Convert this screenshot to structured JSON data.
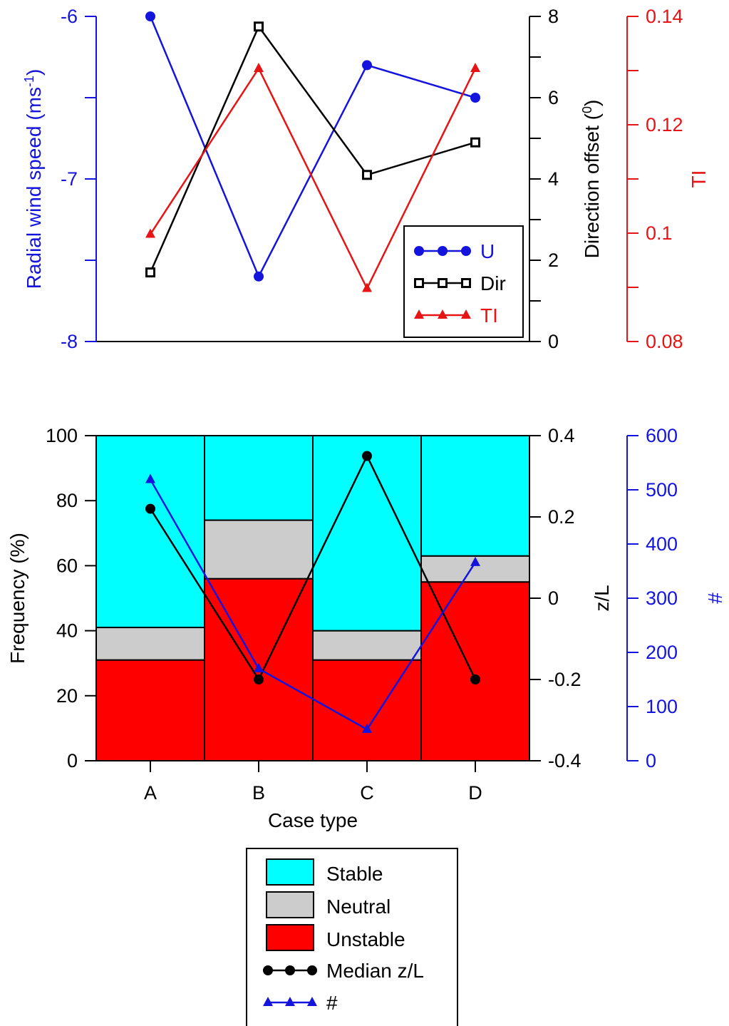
{
  "colors": {
    "blue": "#1414dc",
    "black": "#000000",
    "red": "#e61414",
    "cyan": "#00ffff",
    "gray": "#cccccc",
    "unstable": "#ff0000"
  },
  "chart_data": [
    {
      "type": "line",
      "categories": [
        "A",
        "B",
        "C",
        "D"
      ],
      "axes": {
        "left": {
          "label": "Radial wind speed (ms",
          "label_sup": "-1",
          "label_end": ")",
          "ylim": [
            -8,
            -6
          ],
          "ticks": [
            "-8",
            "-7",
            "-6"
          ],
          "tick_values": [
            -8,
            -7,
            -6
          ]
        },
        "right1": {
          "label": "Direction offset (",
          "label_sup": "0",
          "label_end": ")",
          "ylim": [
            0,
            8
          ],
          "ticks": [
            "0",
            "2",
            "4",
            "6",
            "8"
          ],
          "tick_values": [
            0,
            2,
            4,
            6,
            8
          ]
        },
        "right2": {
          "label": "TI",
          "ylim": [
            0.08,
            0.14
          ],
          "ticks": [
            "0.08",
            "0.1",
            "0.12",
            "0.14"
          ],
          "tick_values": [
            0.08,
            0.1,
            0.12,
            0.14
          ]
        }
      },
      "series": [
        {
          "name": "U",
          "axis": "left",
          "color": "#1414dc",
          "marker": "circle",
          "values": [
            -6.0,
            -7.6,
            -6.3,
            -6.5
          ]
        },
        {
          "name": "Dir",
          "axis": "right1",
          "color": "#000000",
          "marker": "square",
          "values": [
            1.7,
            7.75,
            4.1,
            4.9
          ]
        },
        {
          "name": "TI",
          "axis": "right2",
          "color": "#e61414",
          "marker": "triangle",
          "values": [
            0.0998,
            0.1304,
            0.0898,
            0.1304
          ]
        }
      ],
      "legend": {
        "position": "bottom-right",
        "entries": [
          "U",
          "Dir",
          "TI"
        ]
      }
    },
    {
      "type": "bar",
      "stacked": true,
      "categories": [
        "A",
        "B",
        "C",
        "D"
      ],
      "xlabel": "Case type",
      "axes": {
        "left": {
          "label": "Frequency (%)",
          "ylim": [
            0,
            100
          ],
          "ticks": [
            "0",
            "20",
            "40",
            "60",
            "80",
            "100"
          ],
          "tick_values": [
            0,
            20,
            40,
            60,
            80,
            100
          ]
        },
        "right1": {
          "label": "z/L",
          "ylim": [
            -0.4,
            0.4
          ],
          "ticks": [
            "-0.4",
            "-0.2",
            "0",
            "0.2",
            "0.4"
          ],
          "tick_values": [
            -0.4,
            -0.2,
            0,
            0.2,
            0.4
          ]
        },
        "right2": {
          "label": "#",
          "ylim": [
            0,
            600
          ],
          "ticks": [
            "0",
            "100",
            "200",
            "300",
            "400",
            "500",
            "600"
          ],
          "tick_values": [
            0,
            100,
            200,
            300,
            400,
            500,
            600
          ]
        }
      },
      "series": [
        {
          "name": "Unstable",
          "color": "#ff0000",
          "values": [
            31,
            56,
            31,
            55
          ]
        },
        {
          "name": "Neutral",
          "color": "#cccccc",
          "values": [
            10,
            18,
            9,
            8
          ]
        },
        {
          "name": "Stable",
          "color": "#00ffff",
          "values": [
            59,
            26,
            60,
            37
          ]
        }
      ],
      "lines": [
        {
          "name": "Median z/L",
          "axis": "right1",
          "color": "#000000",
          "marker": "circle",
          "values": [
            0.22,
            -0.2,
            0.35,
            -0.2
          ]
        },
        {
          "name": "#",
          "axis": "right2",
          "color": "#1414dc",
          "marker": "triangle",
          "values": [
            519,
            170,
            58,
            366
          ]
        }
      ],
      "legend": {
        "position": "below",
        "entries": [
          "Stable",
          "Neutral",
          "Unstable",
          "Median z/L",
          "#"
        ]
      }
    }
  ]
}
